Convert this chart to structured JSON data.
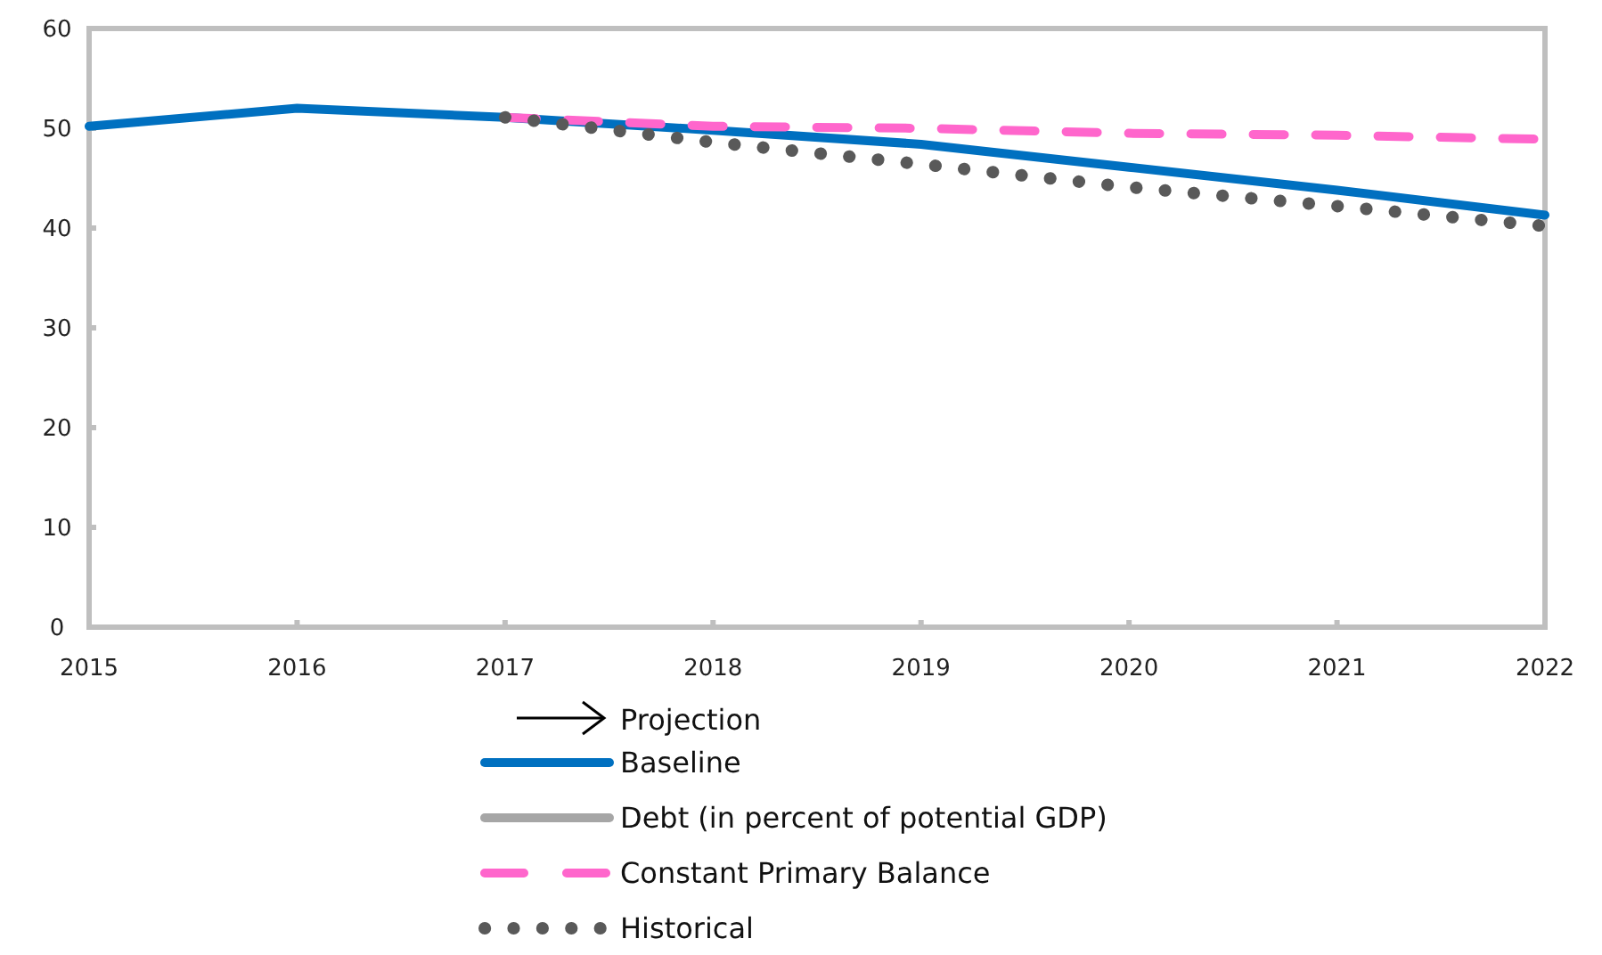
{
  "chart_data": {
    "type": "line",
    "x": [
      2015,
      2016,
      2017,
      2018,
      2019,
      2020,
      2021,
      2022
    ],
    "xlim": [
      2015,
      2022
    ],
    "xticks": [
      2015,
      2016,
      2017,
      2018,
      2019,
      2020,
      2021,
      2022
    ],
    "ylim": [
      0,
      60
    ],
    "yticks": [
      0,
      10,
      20,
      30,
      40,
      50,
      60
    ],
    "grid": false,
    "legend": "bottom",
    "annotations": [
      "Projection"
    ],
    "series": [
      {
        "name": "Baseline",
        "color": "#0070c0",
        "line_style": "solid",
        "values": [
          50.2,
          52.0,
          51.1,
          49.8,
          48.4,
          46.1,
          43.8,
          41.3
        ]
      },
      {
        "name": "Debt (in percent of potential GDP)",
        "color": "#a6a6a6",
        "line_style": "solid",
        "values": [
          null,
          null,
          null,
          null,
          null,
          null,
          null,
          null
        ]
      },
      {
        "name": "Constant Primary Balance",
        "color": "#ff66cc",
        "line_style": "dashed",
        "values": [
          null,
          null,
          51.1,
          50.2,
          50.0,
          49.5,
          49.3,
          48.9
        ]
      },
      {
        "name": "Historical",
        "color": "#595959",
        "line_style": "dotted",
        "values": [
          null,
          null,
          51.1,
          48.6,
          46.4,
          44.1,
          42.2,
          40.2
        ]
      }
    ]
  }
}
